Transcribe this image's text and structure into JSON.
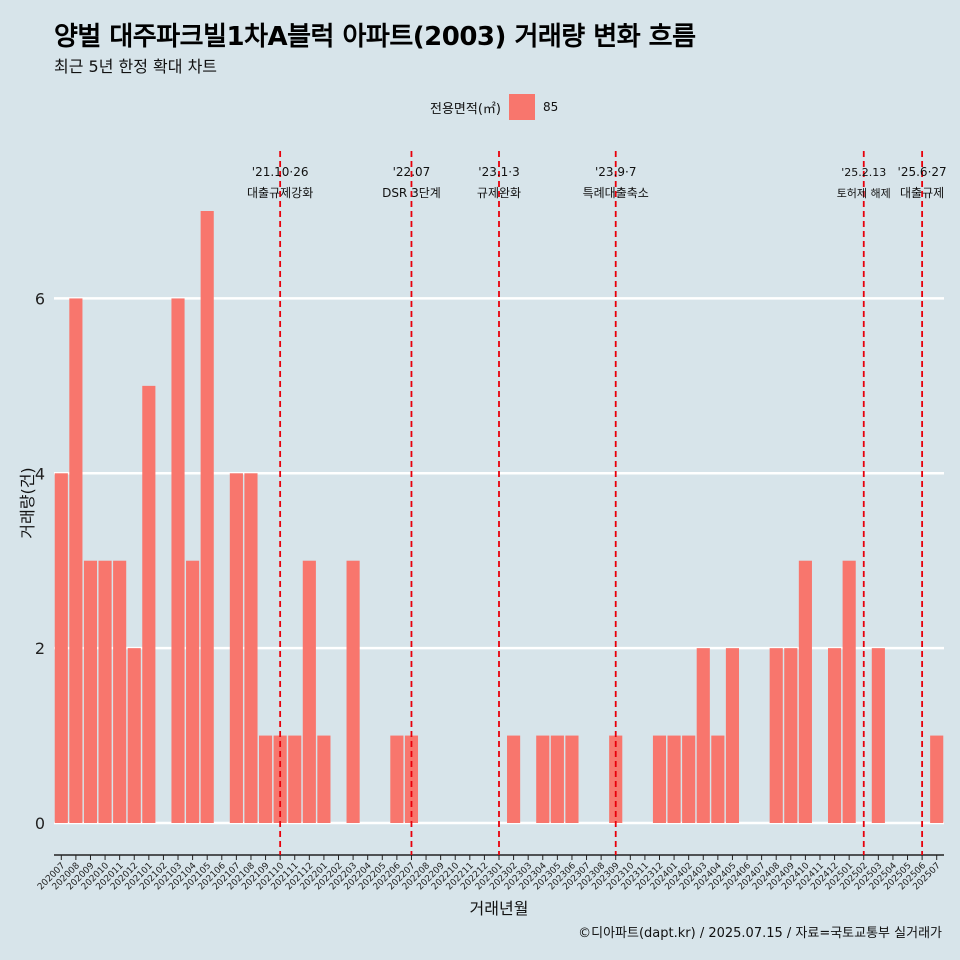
{
  "header": {
    "title": "양벌 대주파크빌1차A블럭 아파트(2003) 거래량 변화 흐름",
    "subtitle": "최근 5년 한정 확대 차트"
  },
  "legend": {
    "title": "전용면적(㎡)",
    "items": [
      {
        "label": "85",
        "color": "#f8766d"
      }
    ]
  },
  "caption": "©디아파트(dapt.kr) / 2025.07.15 / 자료=국토교통부 실거래가",
  "colors": {
    "background": "#d7e4ea",
    "bar": "#f8766d",
    "grid": "#ffffff",
    "event_line": "#e8000b"
  },
  "chart_data": {
    "type": "bar",
    "xlabel": "거래년월",
    "ylabel": "거래량(건)",
    "ylim": [
      0,
      7
    ],
    "yticks": [
      0,
      2,
      4,
      6
    ],
    "grid": true,
    "legend_position": "top",
    "categories": [
      "202007",
      "202008",
      "202009",
      "202010",
      "202011",
      "202012",
      "202101",
      "202102",
      "202103",
      "202104",
      "202105",
      "202106",
      "202107",
      "202108",
      "202109",
      "202110",
      "202111",
      "202112",
      "202201",
      "202202",
      "202203",
      "202204",
      "202205",
      "202206",
      "202207",
      "202208",
      "202209",
      "202210",
      "202211",
      "202212",
      "202301",
      "202302",
      "202303",
      "202304",
      "202305",
      "202306",
      "202307",
      "202308",
      "202309",
      "202310",
      "202311",
      "202312",
      "202401",
      "202402",
      "202403",
      "202404",
      "202405",
      "202406",
      "202407",
      "202408",
      "202409",
      "202410",
      "202411",
      "202412",
      "202501",
      "202502",
      "202503",
      "202504",
      "202505",
      "202506",
      "202507"
    ],
    "series": [
      {
        "name": "85",
        "values": [
          4,
          6,
          3,
          3,
          3,
          2,
          5,
          0,
          6,
          3,
          7,
          0,
          4,
          4,
          1,
          1,
          1,
          3,
          1,
          0,
          3,
          0,
          0,
          1,
          1,
          0,
          0,
          0,
          0,
          0,
          0,
          1,
          0,
          1,
          1,
          1,
          0,
          0,
          1,
          0,
          0,
          1,
          1,
          1,
          2,
          1,
          2,
          0,
          0,
          2,
          2,
          3,
          0,
          2,
          3,
          0,
          2,
          0,
          0,
          0,
          1
        ]
      }
    ],
    "events": [
      {
        "x": "202110",
        "date": "'21.10·26",
        "label": "대출규제강화"
      },
      {
        "x": "202207",
        "date": "'22.07",
        "label": "DSR 3단계"
      },
      {
        "x": "202301",
        "date": "'23.1·3",
        "label": "규제완화"
      },
      {
        "x": "202309",
        "date": "'23.9·7",
        "label": "특례대출축소"
      },
      {
        "x": "202502",
        "date": "'25.2.13",
        "label": "토허제 해제"
      },
      {
        "x": "202506",
        "date": "'25.6·27",
        "label": "대출규제"
      }
    ]
  }
}
